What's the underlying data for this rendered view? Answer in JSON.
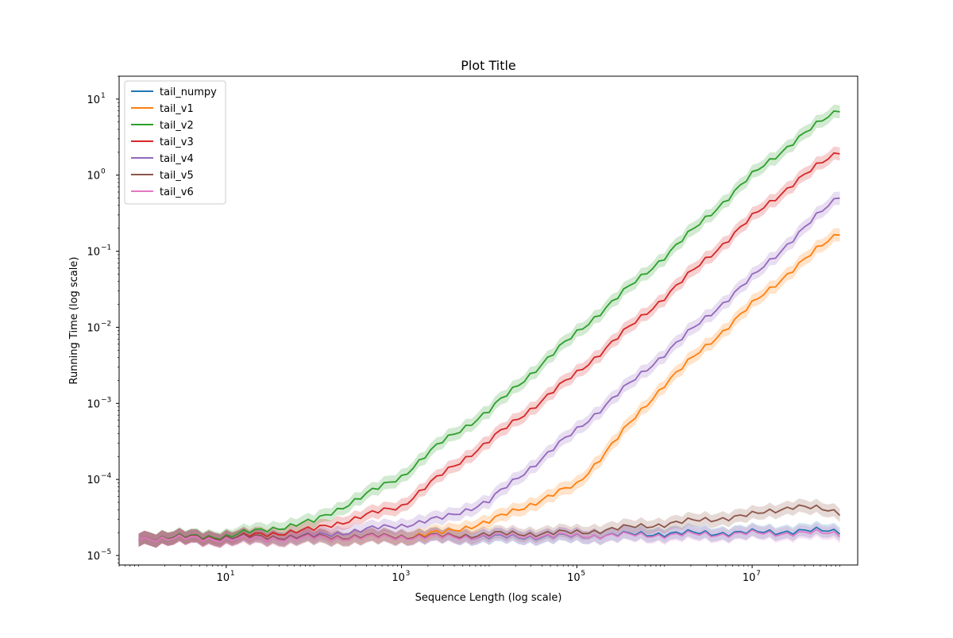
{
  "chart_data": {
    "type": "line",
    "title": "Plot Title",
    "xlabel": "Sequence Length (log scale)",
    "ylabel": "Running Time (log scale)",
    "xscale": "log",
    "yscale": "log",
    "xlim": [
      0.6,
      160000000
    ],
    "ylim": [
      7.5e-06,
      20
    ],
    "xticks": [
      {
        "value": 10,
        "base": "10",
        "exp": "1"
      },
      {
        "value": 1000,
        "base": "10",
        "exp": "3"
      },
      {
        "value": 100000,
        "base": "10",
        "exp": "5"
      },
      {
        "value": 10000000,
        "base": "10",
        "exp": "7"
      }
    ],
    "yticks": [
      {
        "value": 1e-05,
        "base": "10",
        "exp": "−5"
      },
      {
        "value": 0.0001,
        "base": "10",
        "exp": "−4"
      },
      {
        "value": 0.001,
        "base": "10",
        "exp": "−3"
      },
      {
        "value": 0.01,
        "base": "10",
        "exp": "−2"
      },
      {
        "value": 0.1,
        "base": "10",
        "exp": "−1"
      },
      {
        "value": 1,
        "base": "10",
        "exp": "0"
      },
      {
        "value": 10,
        "base": "10",
        "exp": "1"
      }
    ],
    "grid": false,
    "legend_position": "top-left",
    "confidence_band": true,
    "x": [
      1,
      10,
      100,
      1000,
      3000,
      10000,
      100000,
      1000000,
      10000000,
      30000000,
      100000000
    ],
    "series": [
      {
        "name": "tail_numpy",
        "color": "#1f77b4",
        "values": [
          1.7e-05,
          1.7e-05,
          1.7e-05,
          1.75e-05,
          1.8e-05,
          1.75e-05,
          1.8e-05,
          1.95e-05,
          2e-05,
          2.1e-05,
          2.1e-05
        ]
      },
      {
        "name": "tail_v1",
        "color": "#ff7f0e",
        "values": [
          1.7e-05,
          1.7e-05,
          1.7e-05,
          1.75e-05,
          2e-05,
          2.8e-05,
          8.5e-05,
          0.0018,
          0.02,
          0.06,
          0.18
        ]
      },
      {
        "name": "tail_v2",
        "color": "#2ca02c",
        "values": [
          1.7e-05,
          1.8e-05,
          2.8e-05,
          0.00011,
          0.00032,
          0.0008,
          0.0085,
          0.085,
          1.0,
          2.8,
          7.5
        ]
      },
      {
        "name": "tail_v3",
        "color": "#d62728",
        "values": [
          1.7e-05,
          1.7e-05,
          2.2e-05,
          4.5e-05,
          0.00012,
          0.00032,
          0.0025,
          0.025,
          0.28,
          0.8,
          2.1
        ]
      },
      {
        "name": "tail_v4",
        "color": "#9467bd",
        "values": [
          1.7e-05,
          1.7e-05,
          1.8e-05,
          2.5e-05,
          3.1e-05,
          5.2e-05,
          0.00045,
          0.0045,
          0.045,
          0.15,
          0.55
        ]
      },
      {
        "name": "tail_v5",
        "color": "#8c564b",
        "values": [
          1.7e-05,
          1.75e-05,
          1.75e-05,
          1.8e-05,
          1.8e-05,
          1.9e-05,
          2e-05,
          2.6e-05,
          3.4e-05,
          4.5e-05,
          3.7e-05
        ]
      },
      {
        "name": "tail_v6",
        "color": "#e377c2",
        "values": [
          1.7e-05,
          1.65e-05,
          1.7e-05,
          1.75e-05,
          1.75e-05,
          1.78e-05,
          1.82e-05,
          1.86e-05,
          1.94e-05,
          1.98e-05,
          1.95e-05
        ]
      }
    ]
  }
}
